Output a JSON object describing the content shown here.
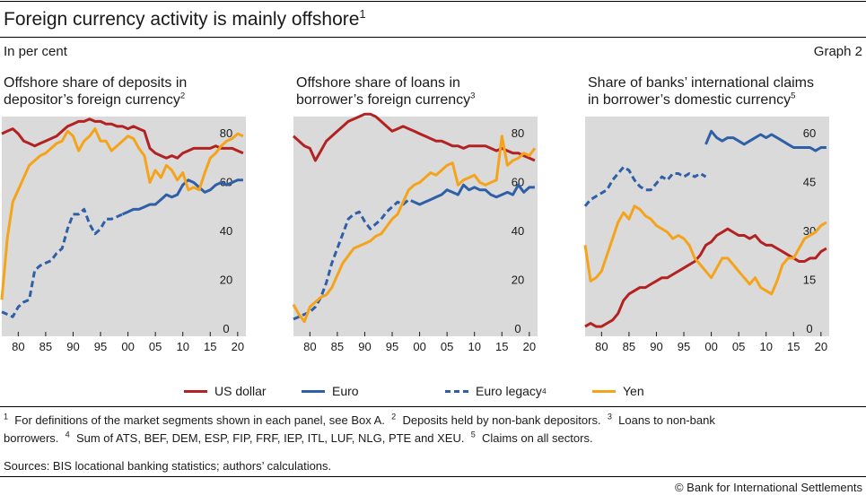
{
  "header": {
    "title": "Foreign currency activity is mainly offshore",
    "title_note": "1",
    "subtitle": "In per cent",
    "graph_label": "Graph 2"
  },
  "panels": [
    {
      "title_line1": "Offshore share of deposits in",
      "title_line2": "depositor’s foreign currency",
      "note": "2"
    },
    {
      "title_line1": "Offshore share of loans in",
      "title_line2": "borrower’s foreign currency",
      "note": "3"
    },
    {
      "title_line1": "Share of banks’ international claims",
      "title_line2": "in borrower’s domestic currency",
      "note": "5"
    }
  ],
  "legend": {
    "usd": "US dollar",
    "eur": "Euro",
    "eur_legacy": "Euro legacy",
    "eur_legacy_note": "4",
    "yen": "Yen"
  },
  "colors": {
    "usd": "#b22222",
    "eur": "#2f5fa7",
    "eur_legacy": "#2f5fa7",
    "yen": "#f4a31b",
    "plot_bg": "#dadada"
  },
  "footnotes": {
    "line1": [
      {
        "n": "1",
        "text": "For definitions of the market segments shown in each panel, see Box A."
      },
      {
        "n": "2",
        "text": "Deposits held by non-bank depositors."
      },
      {
        "n": "3",
        "text": "Loans to non-bank"
      }
    ],
    "line2_prefix": "borrowers.",
    "line2": [
      {
        "n": "4",
        "text": "Sum of ATS, BEF, DEM, ESP, FIP, FRF, IEP, ITL, LUF, NLG, PTE and XEU."
      },
      {
        "n": "5",
        "text": "Claims on all sectors."
      }
    ]
  },
  "sources": "Sources: BIS locational banking statistics; authors’ calculations.",
  "copyright": "© Bank for International Settlements",
  "chart_data": [
    {
      "type": "line",
      "title": "Offshore share of deposits in depositor’s foreign currency",
      "xlim": [
        1977,
        2021.5
      ],
      "x_ticks": [
        "80",
        "85",
        "90",
        "95",
        "00",
        "05",
        "10",
        "15",
        "20"
      ],
      "ylim": [
        0,
        90
      ],
      "y_ticks": [
        "0",
        "20",
        "40",
        "60",
        "80"
      ],
      "y_axis_side": "right",
      "grid": false,
      "series": [
        {
          "name": "US dollar",
          "style": "usd",
          "x": [
            1977,
            1978,
            1979,
            1980,
            1981,
            1982,
            1983,
            1984,
            1985,
            1986,
            1987,
            1988,
            1989,
            1990,
            1991,
            1992,
            1993,
            1994,
            1995,
            1996,
            1997,
            1998,
            1999,
            2000,
            2001,
            2002,
            2003,
            2004,
            2005,
            2006,
            2007,
            2008,
            2009,
            2010,
            2011,
            2012,
            2013,
            2014,
            2015,
            2016,
            2017,
            2018,
            2019,
            2020,
            2021
          ],
          "y": [
            83,
            84,
            85,
            83,
            80,
            79,
            78,
            79,
            80,
            81,
            82,
            84,
            86,
            87,
            88,
            88,
            89,
            88,
            88,
            87,
            87,
            86,
            86,
            85,
            86,
            85,
            84,
            77,
            75,
            74,
            73,
            74,
            73,
            75,
            76,
            77,
            77,
            77,
            77,
            78,
            77,
            77,
            77,
            76,
            75
          ]
        },
        {
          "name": "Euro",
          "style": "eur",
          "x": [
            1999,
            2000,
            2001,
            2002,
            2003,
            2004,
            2005,
            2006,
            2007,
            2008,
            2009,
            2010,
            2011,
            2012,
            2013,
            2014,
            2015,
            2016,
            2017,
            2018,
            2019,
            2020,
            2021
          ],
          "y": [
            50,
            51,
            52,
            52,
            53,
            54,
            54,
            56,
            58,
            57,
            58,
            62,
            64,
            63,
            61,
            59,
            60,
            62,
            63,
            62,
            63,
            64,
            64
          ]
        },
        {
          "name": "Euro legacy",
          "style": "eur_legacy",
          "x": [
            1977,
            1978,
            1979,
            1980,
            1981,
            1982,
            1983,
            1984,
            1985,
            1986,
            1987,
            1988,
            1989,
            1990,
            1991,
            1992,
            1993,
            1994,
            1995,
            1996,
            1997,
            1998,
            1999
          ],
          "y": [
            10,
            9,
            8,
            12,
            14,
            15,
            27,
            29,
            30,
            31,
            34,
            36,
            44,
            50,
            50,
            52,
            46,
            42,
            44,
            48,
            48,
            49,
            50
          ]
        },
        {
          "name": "Yen",
          "style": "yen",
          "x": [
            1977,
            1978,
            1979,
            1980,
            1981,
            1982,
            1983,
            1984,
            1985,
            1986,
            1987,
            1988,
            1989,
            1990,
            1991,
            1992,
            1993,
            1994,
            1995,
            1996,
            1997,
            1998,
            1999,
            2000,
            2001,
            2002,
            2003,
            2004,
            2005,
            2006,
            2007,
            2008,
            2009,
            2010,
            2011,
            2012,
            2013,
            2014,
            2015,
            2016,
            2017,
            2018,
            2019,
            2020,
            2021
          ],
          "y": [
            15,
            40,
            55,
            60,
            65,
            70,
            72,
            74,
            75,
            77,
            79,
            80,
            84,
            82,
            76,
            80,
            82,
            85,
            80,
            80,
            76,
            78,
            80,
            82,
            81,
            77,
            74,
            63,
            68,
            65,
            70,
            68,
            64,
            67,
            60,
            61,
            60,
            67,
            73,
            75,
            78,
            80,
            81,
            83,
            82
          ]
        }
      ]
    },
    {
      "type": "line",
      "title": "Offshore share of loans in borrower’s foreign currency",
      "xlim": [
        1977,
        2021.5
      ],
      "x_ticks": [
        "80",
        "85",
        "90",
        "95",
        "00",
        "05",
        "10",
        "15",
        "20"
      ],
      "ylim": [
        0,
        90
      ],
      "y_ticks": [
        "0",
        "20",
        "40",
        "60",
        "80"
      ],
      "y_axis_side": "right",
      "grid": false,
      "series": [
        {
          "name": "US dollar",
          "style": "usd",
          "x": [
            1977,
            1978,
            1979,
            1980,
            1981,
            1982,
            1983,
            1984,
            1985,
            1986,
            1987,
            1988,
            1989,
            1990,
            1991,
            1992,
            1993,
            1994,
            1995,
            1996,
            1997,
            1998,
            1999,
            2000,
            2001,
            2002,
            2003,
            2004,
            2005,
            2006,
            2007,
            2008,
            2009,
            2010,
            2011,
            2012,
            2013,
            2014,
            2015,
            2016,
            2017,
            2018,
            2019,
            2020,
            2021
          ],
          "y": [
            82,
            80,
            78,
            77,
            72,
            76,
            80,
            82,
            84,
            86,
            88,
            89,
            90,
            91,
            91,
            90,
            88,
            86,
            84,
            85,
            86,
            85,
            84,
            83,
            82,
            81,
            80,
            80,
            79,
            78,
            78,
            77,
            78,
            78,
            78,
            78,
            77,
            76,
            77,
            76,
            75,
            75,
            74,
            73,
            72
          ]
        },
        {
          "name": "Euro",
          "style": "eur",
          "x": [
            1999,
            2000,
            2001,
            2002,
            2003,
            2004,
            2005,
            2006,
            2007,
            2008,
            2009,
            2010,
            2011,
            2012,
            2013,
            2014,
            2015,
            2016,
            2017,
            2018,
            2019,
            2020,
            2021
          ],
          "y": [
            55,
            54,
            55,
            56,
            57,
            58,
            60,
            59,
            58,
            62,
            60,
            61,
            60,
            60,
            58,
            57,
            58,
            59,
            58,
            62,
            59,
            61,
            61
          ]
        },
        {
          "name": "Euro legacy",
          "style": "eur_legacy",
          "x": [
            1977,
            1978,
            1979,
            1980,
            1981,
            1982,
            1983,
            1984,
            1985,
            1986,
            1987,
            1988,
            1989,
            1990,
            1991,
            1992,
            1993,
            1994,
            1995,
            1996,
            1997,
            1998,
            1999
          ],
          "y": [
            7,
            8,
            9,
            10,
            12,
            16,
            22,
            30,
            36,
            42,
            48,
            50,
            51,
            47,
            44,
            46,
            48,
            51,
            53,
            55,
            54,
            56,
            55
          ]
        },
        {
          "name": "Yen",
          "style": "yen",
          "x": [
            1977,
            1978,
            1979,
            1980,
            1981,
            1982,
            1983,
            1984,
            1985,
            1986,
            1987,
            1988,
            1989,
            1990,
            1991,
            1992,
            1993,
            1994,
            1995,
            1996,
            1997,
            1998,
            1999,
            2000,
            2001,
            2002,
            2003,
            2004,
            2005,
            2006,
            2007,
            2008,
            2009,
            2010,
            2011,
            2012,
            2013,
            2014,
            2015,
            2016,
            2017,
            2018,
            2019,
            2020,
            2021
          ],
          "y": [
            13,
            9,
            6,
            12,
            14,
            16,
            17,
            20,
            25,
            30,
            33,
            36,
            37,
            38,
            39,
            41,
            42,
            45,
            48,
            50,
            55,
            60,
            62,
            63,
            65,
            67,
            66,
            68,
            70,
            71,
            62,
            64,
            65,
            66,
            63,
            62,
            63,
            64,
            82,
            70,
            72,
            73,
            75,
            74,
            77
          ]
        }
      ]
    },
    {
      "type": "line",
      "title": "Share of banks’ international claims in borrower’s domestic currency",
      "xlim": [
        1977,
        2021.5
      ],
      "x_ticks": [
        "80",
        "85",
        "90",
        "95",
        "00",
        "05",
        "10",
        "15",
        "20"
      ],
      "ylim": [
        0,
        67.5
      ],
      "y_ticks": [
        "0",
        "15",
        "30",
        "45",
        "60"
      ],
      "y_axis_side": "right",
      "grid": false,
      "series": [
        {
          "name": "US dollar",
          "style": "usd",
          "x": [
            1977,
            1978,
            1979,
            1980,
            1981,
            1982,
            1983,
            1984,
            1985,
            1986,
            1987,
            1988,
            1989,
            1990,
            1991,
            1992,
            1993,
            1994,
            1995,
            1996,
            1997,
            1998,
            1999,
            2000,
            2001,
            2002,
            2003,
            2004,
            2005,
            2006,
            2007,
            2008,
            2009,
            2010,
            2011,
            2012,
            2013,
            2014,
            2015,
            2016,
            2017,
            2018,
            2019,
            2020,
            2021
          ],
          "y": [
            3,
            4,
            3,
            3,
            4,
            5,
            7,
            11,
            13,
            14,
            15,
            15,
            16,
            17,
            18,
            18,
            19,
            20,
            21,
            22,
            23,
            25,
            28,
            29,
            31,
            32,
            33,
            32,
            31,
            31,
            30,
            31,
            29,
            28,
            28,
            27,
            26,
            25,
            24,
            23,
            23,
            24,
            24,
            26,
            27
          ]
        },
        {
          "name": "Euro",
          "style": "eur",
          "x": [
            1999,
            2000,
            2001,
            2002,
            2003,
            2004,
            2005,
            2006,
            2007,
            2008,
            2009,
            2010,
            2011,
            2012,
            2013,
            2014,
            2015,
            2016,
            2017,
            2018,
            2019,
            2020,
            2021
          ],
          "y": [
            59,
            63,
            61,
            60,
            61,
            61,
            60,
            59,
            60,
            61,
            62,
            61,
            62,
            61,
            60,
            59,
            58,
            58,
            58,
            58,
            57,
            58,
            58
          ]
        },
        {
          "name": "Euro legacy",
          "style": "eur_legacy",
          "x": [
            1977,
            1978,
            1979,
            1980,
            1981,
            1982,
            1983,
            1984,
            1985,
            1986,
            1987,
            1988,
            1989,
            1990,
            1991,
            1992,
            1993,
            1994,
            1995,
            1996,
            1997,
            1998,
            1999
          ],
          "y": [
            40,
            42,
            43,
            44,
            45,
            48,
            50,
            52,
            51,
            48,
            46,
            45,
            45,
            47,
            49,
            48,
            50,
            50,
            49,
            50,
            49,
            50,
            49
          ]
        },
        {
          "name": "Yen",
          "style": "yen",
          "x": [
            1977,
            1978,
            1979,
            1980,
            1981,
            1982,
            1983,
            1984,
            1985,
            1986,
            1987,
            1988,
            1989,
            1990,
            1991,
            1992,
            1993,
            1994,
            1995,
            1996,
            1997,
            1998,
            1999,
            2000,
            2001,
            2002,
            2003,
            2004,
            2005,
            2006,
            2007,
            2008,
            2009,
            2010,
            2011,
            2012,
            2013,
            2014,
            2015,
            2016,
            2017,
            2018,
            2019,
            2020,
            2021
          ],
          "y": [
            28,
            17,
            18,
            20,
            25,
            30,
            35,
            38,
            36,
            40,
            39,
            37,
            36,
            34,
            33,
            32,
            30,
            31,
            30,
            28,
            24,
            22,
            20,
            18,
            21,
            24,
            24,
            22,
            20,
            18,
            16,
            18,
            15,
            14,
            13,
            17,
            22,
            24,
            24,
            27,
            30,
            31,
            32,
            34,
            35
          ]
        }
      ]
    }
  ]
}
